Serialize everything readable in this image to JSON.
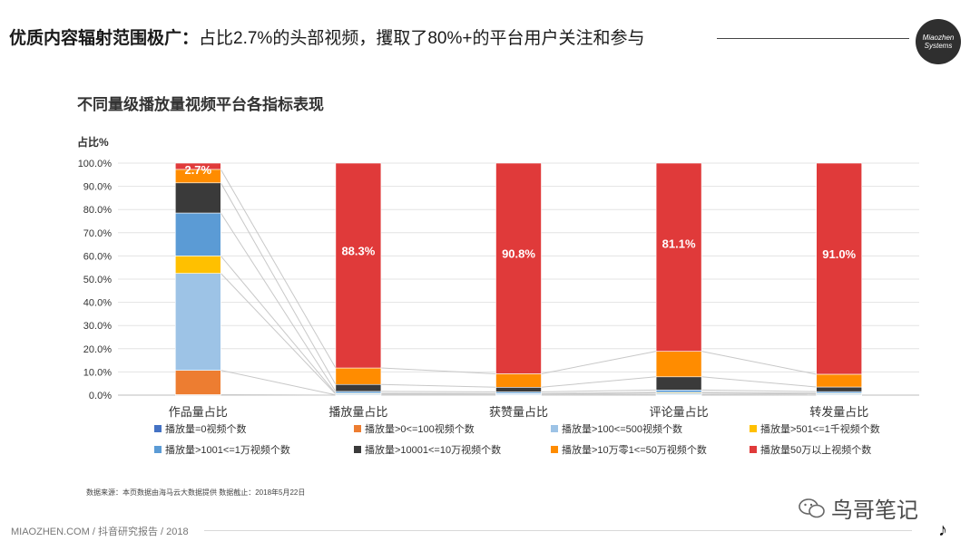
{
  "header": {
    "title_bold": "优质内容辐射范围极广：",
    "title_rest": "占比2.7%的头部视频，攫取了80%+的平台用户关注和参与"
  },
  "logo": {
    "line1": "Miaozhen",
    "line2": "Systems"
  },
  "chart_data": {
    "type": "bar",
    "stacked": true,
    "title": "不同量级播放量视频平台各指标表现",
    "ylabel": "占比%",
    "ylim": [
      0,
      100
    ],
    "yticks": [
      "0.0%",
      "10.0%",
      "20.0%",
      "30.0%",
      "40.0%",
      "50.0%",
      "60.0%",
      "70.0%",
      "80.0%",
      "90.0%",
      "100.0%"
    ],
    "categories": [
      "作品量占比",
      "播放量占比",
      "获赞量占比",
      "评论量占比",
      "转发量占比"
    ],
    "grid": true,
    "legend_placement": "bottom",
    "series": [
      {
        "name": "播放量=0视频个数",
        "color": "#4472C4",
        "values": [
          0.2,
          0.0,
          0.0,
          0.1,
          0.0
        ]
      },
      {
        "name": "播放量>0<=100视频个数",
        "color": "#ED7D31",
        "values": [
          10.5,
          0.1,
          0.1,
          0.1,
          0.1
        ]
      },
      {
        "name": "播放量>100<=500视频个数",
        "color": "#9DC3E6",
        "values": [
          41.8,
          0.4,
          0.4,
          0.6,
          0.4
        ]
      },
      {
        "name": "播放量>501<=1千视频个数",
        "color": "#FFC000",
        "values": [
          7.5,
          0.3,
          0.2,
          0.4,
          0.3
        ]
      },
      {
        "name": "播放量>1001<=1万视频个数",
        "color": "#5B9BD5",
        "values": [
          18.5,
          0.8,
          0.7,
          1.0,
          0.7
        ]
      },
      {
        "name": "播放量>10001<=10万视频个数",
        "color": "#3A3A3A",
        "values": [
          13.0,
          3.0,
          2.0,
          5.7,
          2.0
        ]
      },
      {
        "name": "播放量>10万零1<=50万视频个数",
        "color": "#FF8C00",
        "values": [
          5.8,
          7.1,
          5.8,
          11.0,
          5.5
        ]
      },
      {
        "name": "播放量50万以上视频个数",
        "color": "#E03A3A",
        "values": [
          2.7,
          88.3,
          90.8,
          81.1,
          91.0
        ]
      }
    ],
    "data_labels": [
      "2.7%",
      "88.3%",
      "90.8%",
      "81.1%",
      "91.0%"
    ]
  },
  "footer": {
    "source": "数据来源：本页数据由海马云大数据提供 数据截止：2018年5月22日",
    "left": "MIAOZHEN.COM / 抖音研究报告 / 2018",
    "wechat_name": "鸟哥笔记"
  }
}
